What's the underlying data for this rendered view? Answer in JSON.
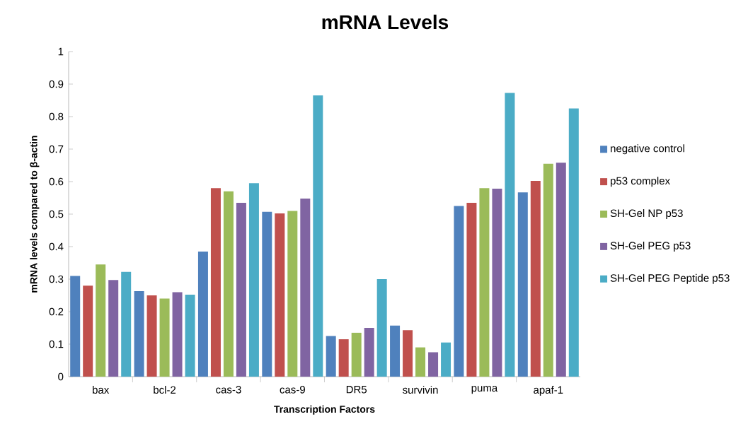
{
  "chart_data": {
    "type": "bar",
    "title": "mRNA Levels",
    "xlabel": "Transcription Factors",
    "ylabel": "mRNA levels compared to β-actin",
    "categories": [
      "bax",
      "bcl-2",
      "cas-3",
      "cas-9",
      "DR5",
      "survivin",
      "puma",
      "apaf-1"
    ],
    "series": [
      {
        "name": "negative control",
        "color": "#4f81bd",
        "values": [
          0.31,
          0.263,
          0.385,
          0.507,
          0.125,
          0.157,
          0.525,
          0.567
        ]
      },
      {
        "name": "p53 complex",
        "color": "#c0504d",
        "values": [
          0.28,
          0.25,
          0.58,
          0.502,
          0.115,
          0.143,
          0.535,
          0.602
        ]
      },
      {
        "name": "SH-Gel NP p53",
        "color": "#9bbb59",
        "values": [
          0.345,
          0.24,
          0.57,
          0.51,
          0.135,
          0.09,
          0.58,
          0.655
        ]
      },
      {
        "name": "SH-Gel PEG p53",
        "color": "#8064a2",
        "values": [
          0.297,
          0.26,
          0.535,
          0.548,
          0.15,
          0.075,
          0.578,
          0.658
        ]
      },
      {
        "name": "SH-Gel PEG Peptide p53",
        "color": "#4bacc6",
        "values": [
          0.322,
          0.252,
          0.595,
          0.865,
          0.3,
          0.105,
          0.873,
          0.825
        ]
      }
    ],
    "ylim": [
      0,
      1
    ],
    "yticks": [
      0,
      0.1,
      0.2,
      0.3,
      0.4,
      0.5,
      0.6,
      0.7,
      0.8,
      0.9,
      1
    ],
    "grid": false,
    "legend": "right"
  }
}
